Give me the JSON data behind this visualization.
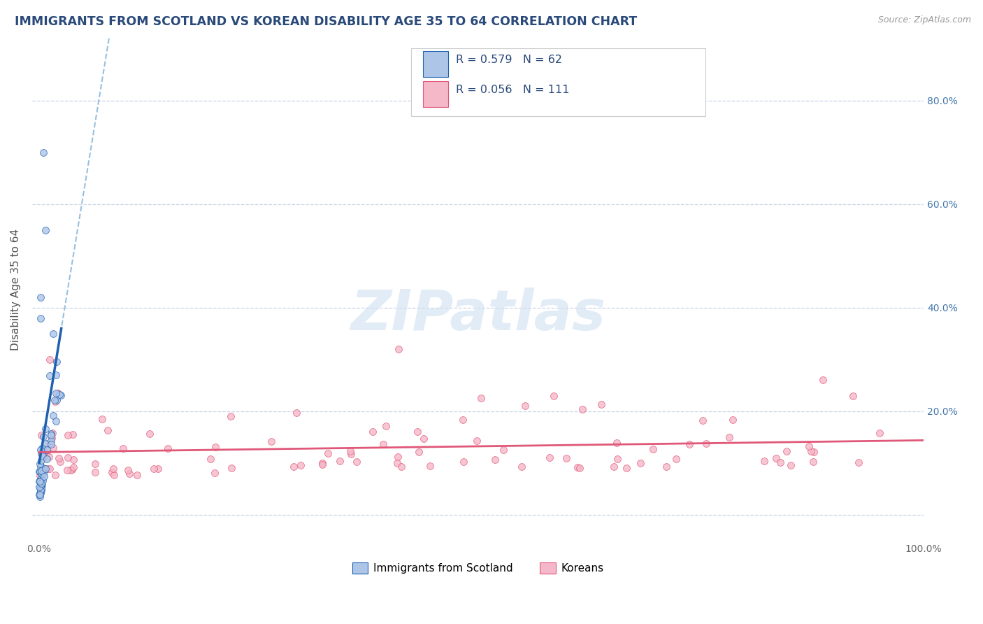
{
  "title": "IMMIGRANTS FROM SCOTLAND VS KOREAN DISABILITY AGE 35 TO 64 CORRELATION CHART",
  "source": "Source: ZipAtlas.com",
  "ylabel": "Disability Age 35 to 64",
  "xlim": [
    -0.008,
    1.0
  ],
  "ylim": [
    -0.05,
    0.92
  ],
  "legend_label1": "Immigrants from Scotland",
  "legend_label2": "Koreans",
  "scatter_color1": "#adc6e8",
  "scatter_color2": "#f5b8c8",
  "line_color1": "#2060b0",
  "line_color2": "#e05878",
  "dash_color": "#90b8d8",
  "watermark_color": "#d0e0f0",
  "background_color": "#ffffff",
  "grid_color": "#c8d4e8",
  "title_color": "#2a4a7a",
  "tick_color": "#4477aa",
  "source_color": "#999999"
}
